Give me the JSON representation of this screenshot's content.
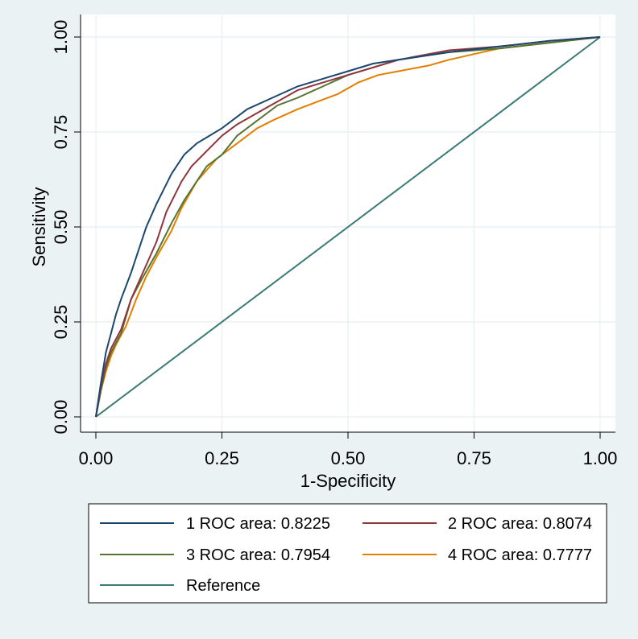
{
  "chart_data": {
    "type": "line",
    "title": "",
    "xlabel": "1-Specificity",
    "ylabel": "Sensitivity",
    "xlim": [
      0,
      1
    ],
    "ylim": [
      0,
      1
    ],
    "x_ticks": [
      "0.00",
      "0.25",
      "0.50",
      "0.75",
      "1.00"
    ],
    "y_ticks": [
      "0.00",
      "0.25",
      "0.50",
      "0.75",
      "1.00"
    ],
    "grid": true,
    "legend_position": "bottom",
    "series": [
      {
        "name": "1 ROC area: 0.8225",
        "color": "#1a476f",
        "x": [
          0,
          0.01,
          0.02,
          0.03,
          0.04,
          0.05,
          0.07,
          0.09,
          0.1,
          0.12,
          0.15,
          0.175,
          0.2,
          0.25,
          0.3,
          0.35,
          0.4,
          0.45,
          0.5,
          0.55,
          0.6,
          0.7,
          0.8,
          0.9,
          1.0
        ],
        "y": [
          0,
          0.09,
          0.17,
          0.22,
          0.27,
          0.31,
          0.38,
          0.46,
          0.5,
          0.56,
          0.64,
          0.69,
          0.72,
          0.76,
          0.81,
          0.84,
          0.87,
          0.89,
          0.91,
          0.93,
          0.94,
          0.96,
          0.975,
          0.99,
          1.0
        ]
      },
      {
        "name": "2 ROC area: 0.8074",
        "color": "#90353b",
        "x": [
          0,
          0.01,
          0.02,
          0.03,
          0.05,
          0.07,
          0.09,
          0.12,
          0.14,
          0.17,
          0.19,
          0.22,
          0.25,
          0.28,
          0.32,
          0.36,
          0.4,
          0.45,
          0.5,
          0.55,
          0.6,
          0.7,
          0.8,
          0.9,
          1.0
        ],
        "y": [
          0,
          0.08,
          0.14,
          0.18,
          0.23,
          0.31,
          0.37,
          0.46,
          0.54,
          0.62,
          0.66,
          0.7,
          0.74,
          0.77,
          0.8,
          0.83,
          0.86,
          0.88,
          0.9,
          0.92,
          0.94,
          0.965,
          0.975,
          0.99,
          1.0
        ]
      },
      {
        "name": "3 ROC area: 0.7954",
        "color": "#55752f",
        "x": [
          0,
          0.01,
          0.02,
          0.03,
          0.05,
          0.07,
          0.09,
          0.12,
          0.15,
          0.175,
          0.2,
          0.22,
          0.25,
          0.28,
          0.32,
          0.36,
          0.4,
          0.45,
          0.5,
          0.55,
          0.6,
          0.7,
          0.8,
          0.9,
          1.0
        ],
        "y": [
          0,
          0.07,
          0.13,
          0.17,
          0.22,
          0.31,
          0.36,
          0.43,
          0.51,
          0.57,
          0.62,
          0.66,
          0.69,
          0.74,
          0.78,
          0.82,
          0.84,
          0.87,
          0.9,
          0.92,
          0.94,
          0.96,
          0.97,
          0.985,
          1.0
        ]
      },
      {
        "name": "4 ROC area: 0.7777",
        "color": "#e37e00",
        "x": [
          0,
          0.01,
          0.02,
          0.03,
          0.04,
          0.06,
          0.08,
          0.1,
          0.12,
          0.15,
          0.17,
          0.2,
          0.24,
          0.28,
          0.32,
          0.35,
          0.4,
          0.44,
          0.48,
          0.52,
          0.56,
          0.6,
          0.66,
          0.7,
          0.75,
          0.8,
          0.9,
          1.0
        ],
        "y": [
          0,
          0.07,
          0.12,
          0.16,
          0.19,
          0.24,
          0.31,
          0.37,
          0.42,
          0.49,
          0.55,
          0.62,
          0.68,
          0.72,
          0.76,
          0.78,
          0.81,
          0.83,
          0.85,
          0.88,
          0.9,
          0.91,
          0.925,
          0.94,
          0.955,
          0.97,
          0.985,
          1.0
        ]
      },
      {
        "name": "Reference",
        "color": "#3b7a75",
        "x": [
          0,
          1
        ],
        "y": [
          0,
          1
        ]
      }
    ]
  }
}
